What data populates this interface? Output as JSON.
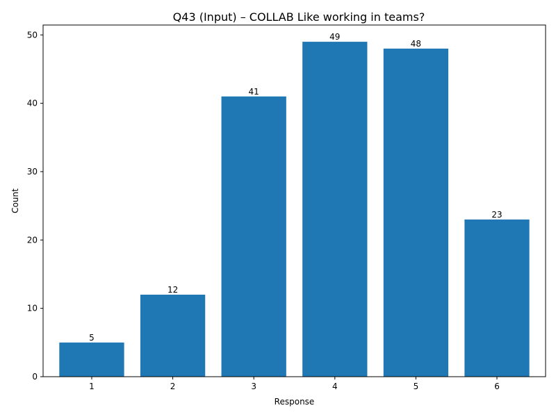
{
  "chart_data": {
    "type": "bar",
    "title": "Q43 (Input) – COLLAB Like working in teams?",
    "xlabel": "Response",
    "ylabel": "Count",
    "categories": [
      "1",
      "2",
      "3",
      "4",
      "5",
      "6"
    ],
    "values": [
      5,
      12,
      41,
      49,
      48,
      23
    ],
    "ylim": [
      0,
      51.45
    ],
    "yticks": [
      0,
      10,
      20,
      30,
      40,
      50
    ],
    "grid": false,
    "bar_color": "#1f77b4",
    "show_value_labels": true
  }
}
